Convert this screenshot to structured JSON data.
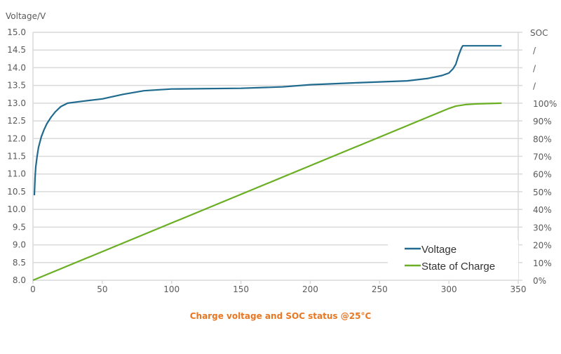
{
  "chart_data": {
    "type": "line",
    "title": "Charge voltage and SOC status @25°C",
    "ylabel": "Voltage/V",
    "y2label": "SOC",
    "xlim": [
      0,
      350
    ],
    "ylim": [
      8.0,
      15.0
    ],
    "y2lim": [
      0,
      100
    ],
    "grid": true,
    "legend_position": "bottom-right",
    "x_ticks": [
      "0",
      "50",
      "100",
      "150",
      "200",
      "250",
      "300",
      "350"
    ],
    "y_ticks": [
      "8.0",
      "8.5",
      "9.0",
      "9.5",
      "10.0",
      "10.5",
      "11.0",
      "11.5",
      "12.0",
      "12.5",
      "13.0",
      "13.5",
      "14.0",
      "14.5",
      "15.0"
    ],
    "y2_ticks": [
      "0%",
      "10%",
      "20%",
      "30%",
      "40%",
      "50%",
      "60%",
      "70%",
      "80%",
      "90%",
      "100%",
      "/",
      "/",
      "/",
      "SOC"
    ],
    "series": [
      {
        "name": "Voltage",
        "axis": "left",
        "color": "#1F6A8E",
        "x": [
          1,
          1.5,
          2,
          3,
          4,
          6,
          8,
          10,
          13,
          16,
          20,
          25,
          35,
          50,
          65,
          80,
          100,
          150,
          180,
          200,
          230,
          250,
          270,
          285,
          295,
          300,
          303,
          305,
          307,
          309,
          310,
          338
        ],
        "y": [
          10.4,
          10.9,
          11.2,
          11.5,
          11.75,
          12.05,
          12.25,
          12.42,
          12.6,
          12.75,
          12.9,
          13.0,
          13.05,
          13.12,
          13.25,
          13.35,
          13.4,
          13.42,
          13.46,
          13.52,
          13.57,
          13.6,
          13.63,
          13.7,
          13.78,
          13.85,
          13.97,
          14.1,
          14.35,
          14.55,
          14.62,
          14.62
        ]
      },
      {
        "name": "State of Charge",
        "axis": "right",
        "color": "#6AAF23",
        "x": [
          0,
          300,
          305,
          312,
          320,
          338
        ],
        "y": [
          0,
          97,
          98.3,
          99.2,
          99.6,
          100
        ]
      }
    ]
  }
}
